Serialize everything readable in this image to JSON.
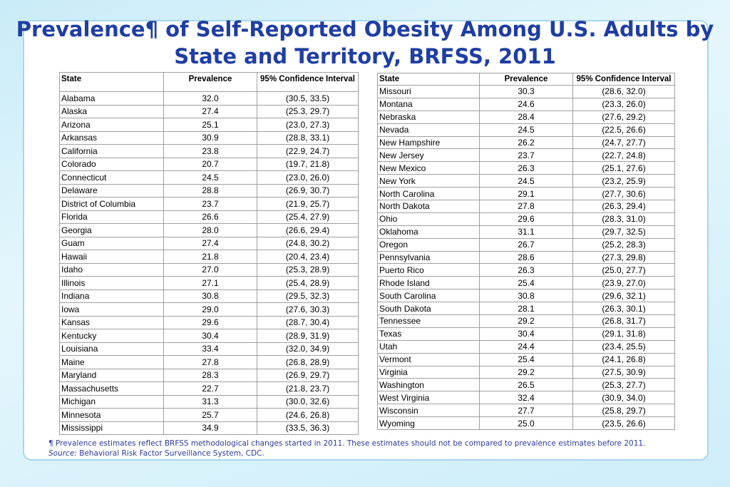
{
  "title": "Prevalence¶ of Self-Reported Obesity Among U.S. Adults by State and Territory, BRFSS, 2011",
  "columns": {
    "state": "State",
    "prevalence": "Prevalence",
    "ci": "95% Confidence Interval"
  },
  "left_table": [
    [
      "Alabama",
      "32.0",
      "(30.5, 33.5)"
    ],
    [
      "Alaska",
      "27.4",
      "(25.3, 29.7)"
    ],
    [
      "Arizona",
      "25.1",
      "(23.0, 27.3)"
    ],
    [
      "Arkansas",
      "30.9",
      "(28.8, 33.1)"
    ],
    [
      "California",
      "23.8",
      "(22.9, 24.7)"
    ],
    [
      "Colorado",
      "20.7",
      "(19.7, 21.8)"
    ],
    [
      "Connecticut",
      "24.5",
      "(23.0, 26.0)"
    ],
    [
      "Delaware",
      "28.8",
      "(26.9, 30.7)"
    ],
    [
      "District of Columbia",
      "23.7",
      "(21.9, 25.7)"
    ],
    [
      "Florida",
      "26.6",
      "(25.4, 27.9)"
    ],
    [
      "Georgia",
      "28.0",
      "(26.6, 29.4)"
    ],
    [
      "Guam",
      "27.4",
      "(24.8, 30.2)"
    ],
    [
      "Hawaii",
      "21.8",
      "(20.4, 23.4)"
    ],
    [
      "Idaho",
      "27.0",
      "(25.3, 28.9)"
    ],
    [
      "Illinois",
      "27.1",
      "(25.4, 28.9)"
    ],
    [
      "Indiana",
      "30.8",
      "(29.5, 32.3)"
    ],
    [
      "Iowa",
      "29.0",
      "(27.6, 30.3)"
    ],
    [
      "Kansas",
      "29.6",
      "(28.7, 30.4)"
    ],
    [
      "Kentucky",
      "30.4",
      "(28.9, 31.9)"
    ],
    [
      "Louisiana",
      "33.4",
      "(32.0, 34.9)"
    ],
    [
      "Maine",
      "27.8",
      "(26.8, 28.9)"
    ],
    [
      "Maryland",
      "28.3",
      "(26.9, 29.7)"
    ],
    [
      "Massachusetts",
      "22.7",
      "(21.8, 23.7)"
    ],
    [
      "Michigan",
      "31.3",
      "(30.0, 32.6)"
    ],
    [
      "Minnesota",
      "25.7",
      "(24.6, 26.8)"
    ],
    [
      "Mississippi",
      "34.9",
      "(33.5, 36.3)"
    ]
  ],
  "right_table": [
    [
      "Missouri",
      "30.3",
      "(28.6, 32.0)"
    ],
    [
      "Montana",
      "24.6",
      "(23.3, 26.0)"
    ],
    [
      "Nebraska",
      "28.4",
      "(27.6, 29.2)"
    ],
    [
      "Nevada",
      "24.5",
      "(22.5, 26.6)"
    ],
    [
      "New Hampshire",
      "26.2",
      "(24.7, 27.7)"
    ],
    [
      "New Jersey",
      "23.7",
      "(22.7, 24.8)"
    ],
    [
      "New Mexico",
      "26.3",
      "(25.1, 27.6)"
    ],
    [
      "New York",
      "24.5",
      "(23.2, 25.9)"
    ],
    [
      "North Carolina",
      "29.1",
      "(27.7, 30.6)"
    ],
    [
      "North Dakota",
      "27.8",
      "(26.3, 29.4)"
    ],
    [
      "Ohio",
      "29.6",
      "(28.3, 31.0)"
    ],
    [
      "Oklahoma",
      "31.1",
      "(29.7, 32.5)"
    ],
    [
      "Oregon",
      "26.7",
      "(25.2, 28.3)"
    ],
    [
      "Pennsylvania",
      "28.6",
      "(27.3, 29.8)"
    ],
    [
      "Puerto Rico",
      "26.3",
      "(25.0, 27.7)"
    ],
    [
      "Rhode Island",
      "25.4",
      "(23.9, 27.0)"
    ],
    [
      "South Carolina",
      "30.8",
      "(29.6, 32.1)"
    ],
    [
      "South Dakota",
      "28.1",
      "(26.3, 30.1)"
    ],
    [
      "Tennessee",
      "29.2",
      "(26.8, 31.7)"
    ],
    [
      "Texas",
      "30.4",
      "(29.1, 31.8)"
    ],
    [
      "Utah",
      "24.4",
      "(23.4, 25.5)"
    ],
    [
      "Vermont",
      "25.4",
      "(24.1, 26.8)"
    ],
    [
      "Virginia",
      "29.2",
      "(27.5, 30.9)"
    ],
    [
      "Washington",
      "26.5",
      "(25.3, 27.7)"
    ],
    [
      "West Virginia",
      "32.4",
      "(30.9, 34.0)"
    ],
    [
      "Wisconsin",
      "27.7",
      "(25.8, 29.7)"
    ],
    [
      "Wyoming",
      "25.0",
      "(23.5, 26.6)"
    ]
  ],
  "footnote": {
    "marker": "¶",
    "text": "Prevalence estimates reflect BRFSS methodological changes started in 2011. These estimates should not be compared to prevalence estimates before 2011.",
    "source_label": "Source:",
    "source_text": "Behavioral Risk Factor Surveillance System, CDC."
  },
  "colors": {
    "title": "#1f3ea3",
    "footnote": "#2b3a9c",
    "card_border": "#a9d6ec",
    "background": "#c9ecf8"
  }
}
